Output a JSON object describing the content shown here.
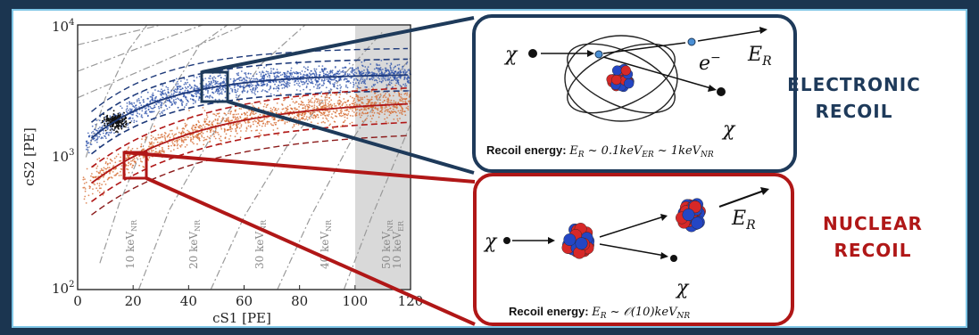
{
  "plot": {
    "ylabel": "cS2 [PE]",
    "xlabel": "cS1 [PE]",
    "y_ticks": [
      {
        "base": "10",
        "exp": "4"
      },
      {
        "base": "10",
        "exp": "3"
      },
      {
        "base": "10",
        "exp": "2"
      }
    ],
    "x_ticks": [
      "0",
      "20",
      "40",
      "60",
      "80",
      "100",
      "120"
    ],
    "energy_contours": [
      "10 keV",
      "NR",
      "20 keV",
      "NR",
      "30 keV",
      "NR",
      "40 keV",
      "NR",
      "50 keV",
      "NR",
      "10 keV",
      "ER"
    ]
  },
  "er_box": {
    "chi_in": "χ",
    "electron": "e",
    "electron_sup": "−",
    "er_label": "E",
    "er_sub": "R",
    "chi_out": "χ",
    "recoil_prefix": "Recoil energy: ",
    "recoil_formula": "E",
    "recoil_formula_sub": "R",
    "recoil_tail1": " ~ 0.1keV",
    "recoil_tail1_sub": "ER",
    "recoil_tail2": " ~ 1keV",
    "recoil_tail2_sub": "NR"
  },
  "nr_box": {
    "chi_in": "χ",
    "er_label": "E",
    "er_sub": "R",
    "chi_out": "χ",
    "recoil_prefix": "Recoil energy: ",
    "recoil_formula": "E",
    "recoil_formula_sub": "R",
    "recoil_tail": " ~ 𝒪(10)keV",
    "recoil_tail_sub": "NR"
  },
  "labels": {
    "electronic": "ELECTRONIC",
    "recoil_er": "RECOIL",
    "nuclear": "NUCLEAR",
    "recoil_nr": "RECOIL"
  },
  "colors": {
    "navy": "#1e3a5a",
    "red": "#b01717",
    "er_band": "#2a4fa8",
    "nr_band": "#d4652a",
    "frame": "#1b3550",
    "border": "#7fc6e6"
  }
}
